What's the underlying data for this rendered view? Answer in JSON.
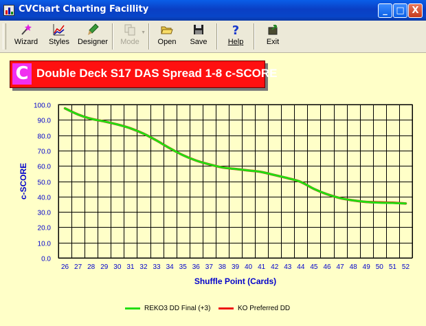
{
  "window": {
    "title": "CVChart Charting Facillity",
    "controls": [
      "_",
      "□",
      "X"
    ]
  },
  "toolbar": {
    "wizard": "Wizard",
    "styles": "Styles",
    "designer": "Designer",
    "mode": "Mode",
    "open": "Open",
    "save": "Save",
    "help": "Help",
    "exit": "Exit"
  },
  "banner": {
    "logo": "C"
  },
  "colors": {
    "bg": "#ffffc8",
    "reko": "#22dd11",
    "ko": "#ee1111",
    "axis_text": "#0000cc"
  },
  "chart_data": {
    "type": "line",
    "title": "Double Deck S17 DAS Spread 1-8 c-SCORE",
    "xlabel": "Shuffle Point (Cards)",
    "ylabel": "c-SCORE",
    "ylim": [
      0,
      100
    ],
    "yticks": [
      "0.0",
      "10.0",
      "20.0",
      "30.0",
      "40.0",
      "50.0",
      "60.0",
      "70.0",
      "80.0",
      "90.0",
      "100.0"
    ],
    "x": [
      26,
      27,
      28,
      29,
      30,
      31,
      32,
      33,
      34,
      35,
      36,
      37,
      38,
      39,
      40,
      41,
      42,
      43,
      44,
      45,
      46,
      47,
      48,
      49,
      50,
      51,
      52
    ],
    "xticks": [
      "26",
      "27",
      "28",
      "29",
      "30",
      "31",
      "32",
      "33",
      "34",
      "35",
      "36",
      "37",
      "38",
      "39",
      "40",
      "41",
      "42",
      "43",
      "44",
      "45",
      "46",
      "47",
      "48",
      "49",
      "50",
      "51",
      "52"
    ],
    "grid": true,
    "legend_position": "bottom",
    "series": [
      {
        "name": "REKO3 DD Final (+3)",
        "color": "#22dd11",
        "values": [
          97.5,
          93.5,
          90.7,
          89.0,
          87.0,
          84.5,
          81.0,
          76.5,
          71.5,
          67.0,
          63.5,
          61.0,
          59.0,
          58.0,
          57.0,
          56.0,
          54.0,
          52.0,
          49.5,
          45.0,
          41.5,
          39.0,
          37.5,
          36.5,
          36.0,
          35.8,
          35.5
        ]
      },
      {
        "name": "KO Preferred DD",
        "color": "#ee1111",
        "values": [
          97.5,
          93.5,
          90.7,
          89.0,
          87.0,
          84.5,
          81.0,
          76.5,
          71.5,
          67.0,
          63.5,
          61.0,
          59.0,
          58.0,
          57.0,
          56.0,
          54.0,
          52.0,
          49.5,
          45.0,
          41.5,
          39.0,
          37.5,
          36.5,
          36.2,
          36.0,
          35.5
        ]
      }
    ]
  }
}
